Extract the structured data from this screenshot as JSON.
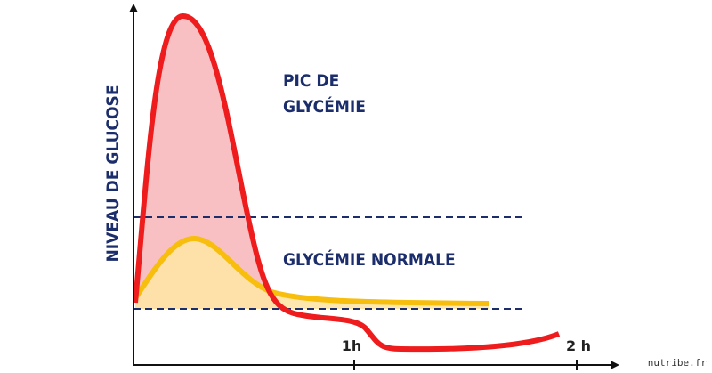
{
  "y_axis_label": "NIVEAU DE GLUCOSE",
  "annotations": {
    "peak_line1": "PIC DE",
    "peak_line2": "GLYCÉMIE",
    "normal": "GLYCÉMIE NORMALE"
  },
  "x_ticks": [
    "1h",
    "2 h"
  ],
  "source": "nutribe.fr"
}
